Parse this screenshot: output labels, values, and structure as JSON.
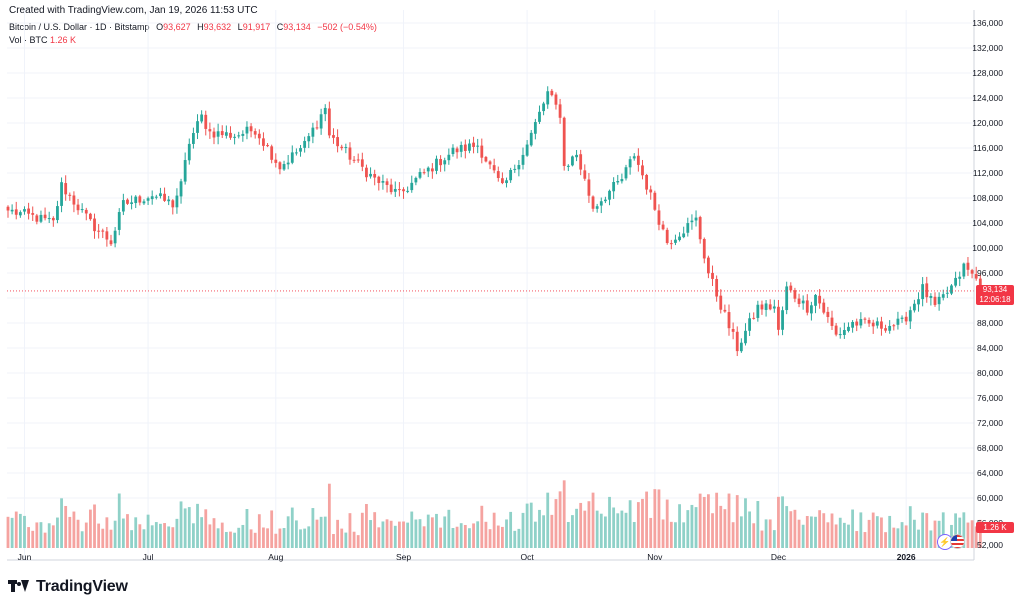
{
  "header": {
    "created": "Created with TradingView.com, Jan 19, 2026 11:53 UTC",
    "symbol": "Bitcoin / U.S. Dollar · 1D · Bitstamp",
    "o_label": "O",
    "o_value": "93,627",
    "h_label": "H",
    "h_value": "93,632",
    "l_label": "L",
    "l_value": "91,917",
    "c_label": "C",
    "c_value": "93,134",
    "change": "−502 (−0.54%)",
    "vol_label": "Vol · BTC",
    "vol_value": "1.26 K"
  },
  "price_tag": {
    "price": "93,134",
    "countdown": "12:06:18"
  },
  "volume_tag": "1.26 K",
  "footer": {
    "brand": "TradingView"
  },
  "colors": {
    "up": "#26a69a",
    "down": "#ef5350",
    "vol_up": "#8fd1c8",
    "vol_down": "#f5a3a0",
    "grid": "#f0f3fa"
  },
  "icons": [
    "tradingview-logo-icon",
    "lightning-icon",
    "us-flag-icon"
  ],
  "chart_data": {
    "type": "candlestick",
    "x_tick_labels": [
      "Jun",
      "Jul",
      "Aug",
      "Sep",
      "Oct",
      "Nov",
      "Dec",
      "2026"
    ],
    "y_tick_labels": [
      "136,000",
      "132,000",
      "128,000",
      "124,000",
      "120,000",
      "116,000",
      "112,000",
      "108,000",
      "104,000",
      "100,000",
      "96,000",
      "92,000",
      "88,000",
      "84,000",
      "80,000",
      "76,000",
      "72,000",
      "68,000",
      "64,000",
      "60,000",
      "56,000",
      "52,000"
    ],
    "ylim": [
      50000,
      137000
    ],
    "last_price": 93134,
    "anchors": [
      [
        "2025-05-28",
        106000
      ],
      [
        "2025-06-03",
        105000
      ],
      [
        "2025-06-08",
        104000
      ],
      [
        "2025-06-10",
        110000
      ],
      [
        "2025-06-17",
        104000
      ],
      [
        "2025-06-22",
        101000
      ],
      [
        "2025-06-25",
        107000
      ],
      [
        "2025-07-02",
        108500
      ],
      [
        "2025-07-07",
        107000
      ],
      [
        "2025-07-09",
        110000
      ],
      [
        "2025-07-11",
        117000
      ],
      [
        "2025-07-14",
        121000
      ],
      [
        "2025-07-16",
        118500
      ],
      [
        "2025-07-22",
        118000
      ],
      [
        "2025-07-27",
        119000
      ],
      [
        "2025-08-02",
        113000
      ],
      [
        "2025-08-08",
        116500
      ],
      [
        "2025-08-13",
        122500
      ],
      [
        "2025-08-14",
        118000
      ],
      [
        "2025-08-20",
        114000
      ],
      [
        "2025-08-25",
        111000
      ],
      [
        "2025-08-31",
        108500
      ],
      [
        "2025-09-05",
        111500
      ],
      [
        "2025-09-13",
        115500
      ],
      [
        "2025-09-19",
        116500
      ],
      [
        "2025-09-25",
        109500
      ],
      [
        "2025-10-01",
        116500
      ],
      [
        "2025-10-06",
        124800
      ],
      [
        "2025-10-09",
        121500
      ],
      [
        "2025-10-10",
        113000
      ],
      [
        "2025-10-13",
        115000
      ],
      [
        "2025-10-17",
        106500
      ],
      [
        "2025-10-24",
        111000
      ],
      [
        "2025-10-27",
        115000
      ],
      [
        "2025-10-30",
        110000
      ],
      [
        "2025-11-04",
        101000
      ],
      [
        "2025-11-11",
        104500
      ],
      [
        "2025-11-14",
        96000
      ],
      [
        "2025-11-21",
        84000
      ],
      [
        "2025-11-26",
        90500
      ],
      [
        "2025-11-30",
        90600
      ],
      [
        "2025-12-01",
        86500
      ],
      [
        "2025-12-03",
        93500
      ],
      [
        "2025-12-08",
        90500
      ],
      [
        "2025-12-10",
        92500
      ],
      [
        "2025-12-15",
        86000
      ],
      [
        "2025-12-19",
        88000
      ],
      [
        "2025-12-26",
        87500
      ],
      [
        "2025-12-31",
        88000
      ],
      [
        "2026-01-05",
        93500
      ],
      [
        "2026-01-08",
        90500
      ],
      [
        "2026-01-13",
        94500
      ],
      [
        "2026-01-15",
        97000
      ],
      [
        "2026-01-18",
        95000
      ],
      [
        "2026-01-19",
        93134
      ]
    ]
  }
}
